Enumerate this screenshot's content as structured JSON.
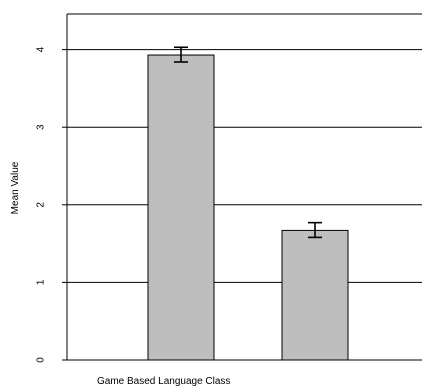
{
  "chart_data": {
    "type": "bar",
    "title": "",
    "ylabel": "Mean Value",
    "xlabel": "Game Based Language Class",
    "categories": [
      "",
      ""
    ],
    "values": [
      3.93,
      1.67
    ],
    "error_lower": [
      3.84,
      1.58
    ],
    "error_upper": [
      4.03,
      1.77
    ],
    "ylim": [
      0,
      4.2
    ],
    "y_ticks": [
      0,
      1,
      2,
      3,
      4
    ],
    "grid": true,
    "bar_color": "#bebebe",
    "bar_edge_color": "#000000",
    "grid_color": "#000000"
  }
}
